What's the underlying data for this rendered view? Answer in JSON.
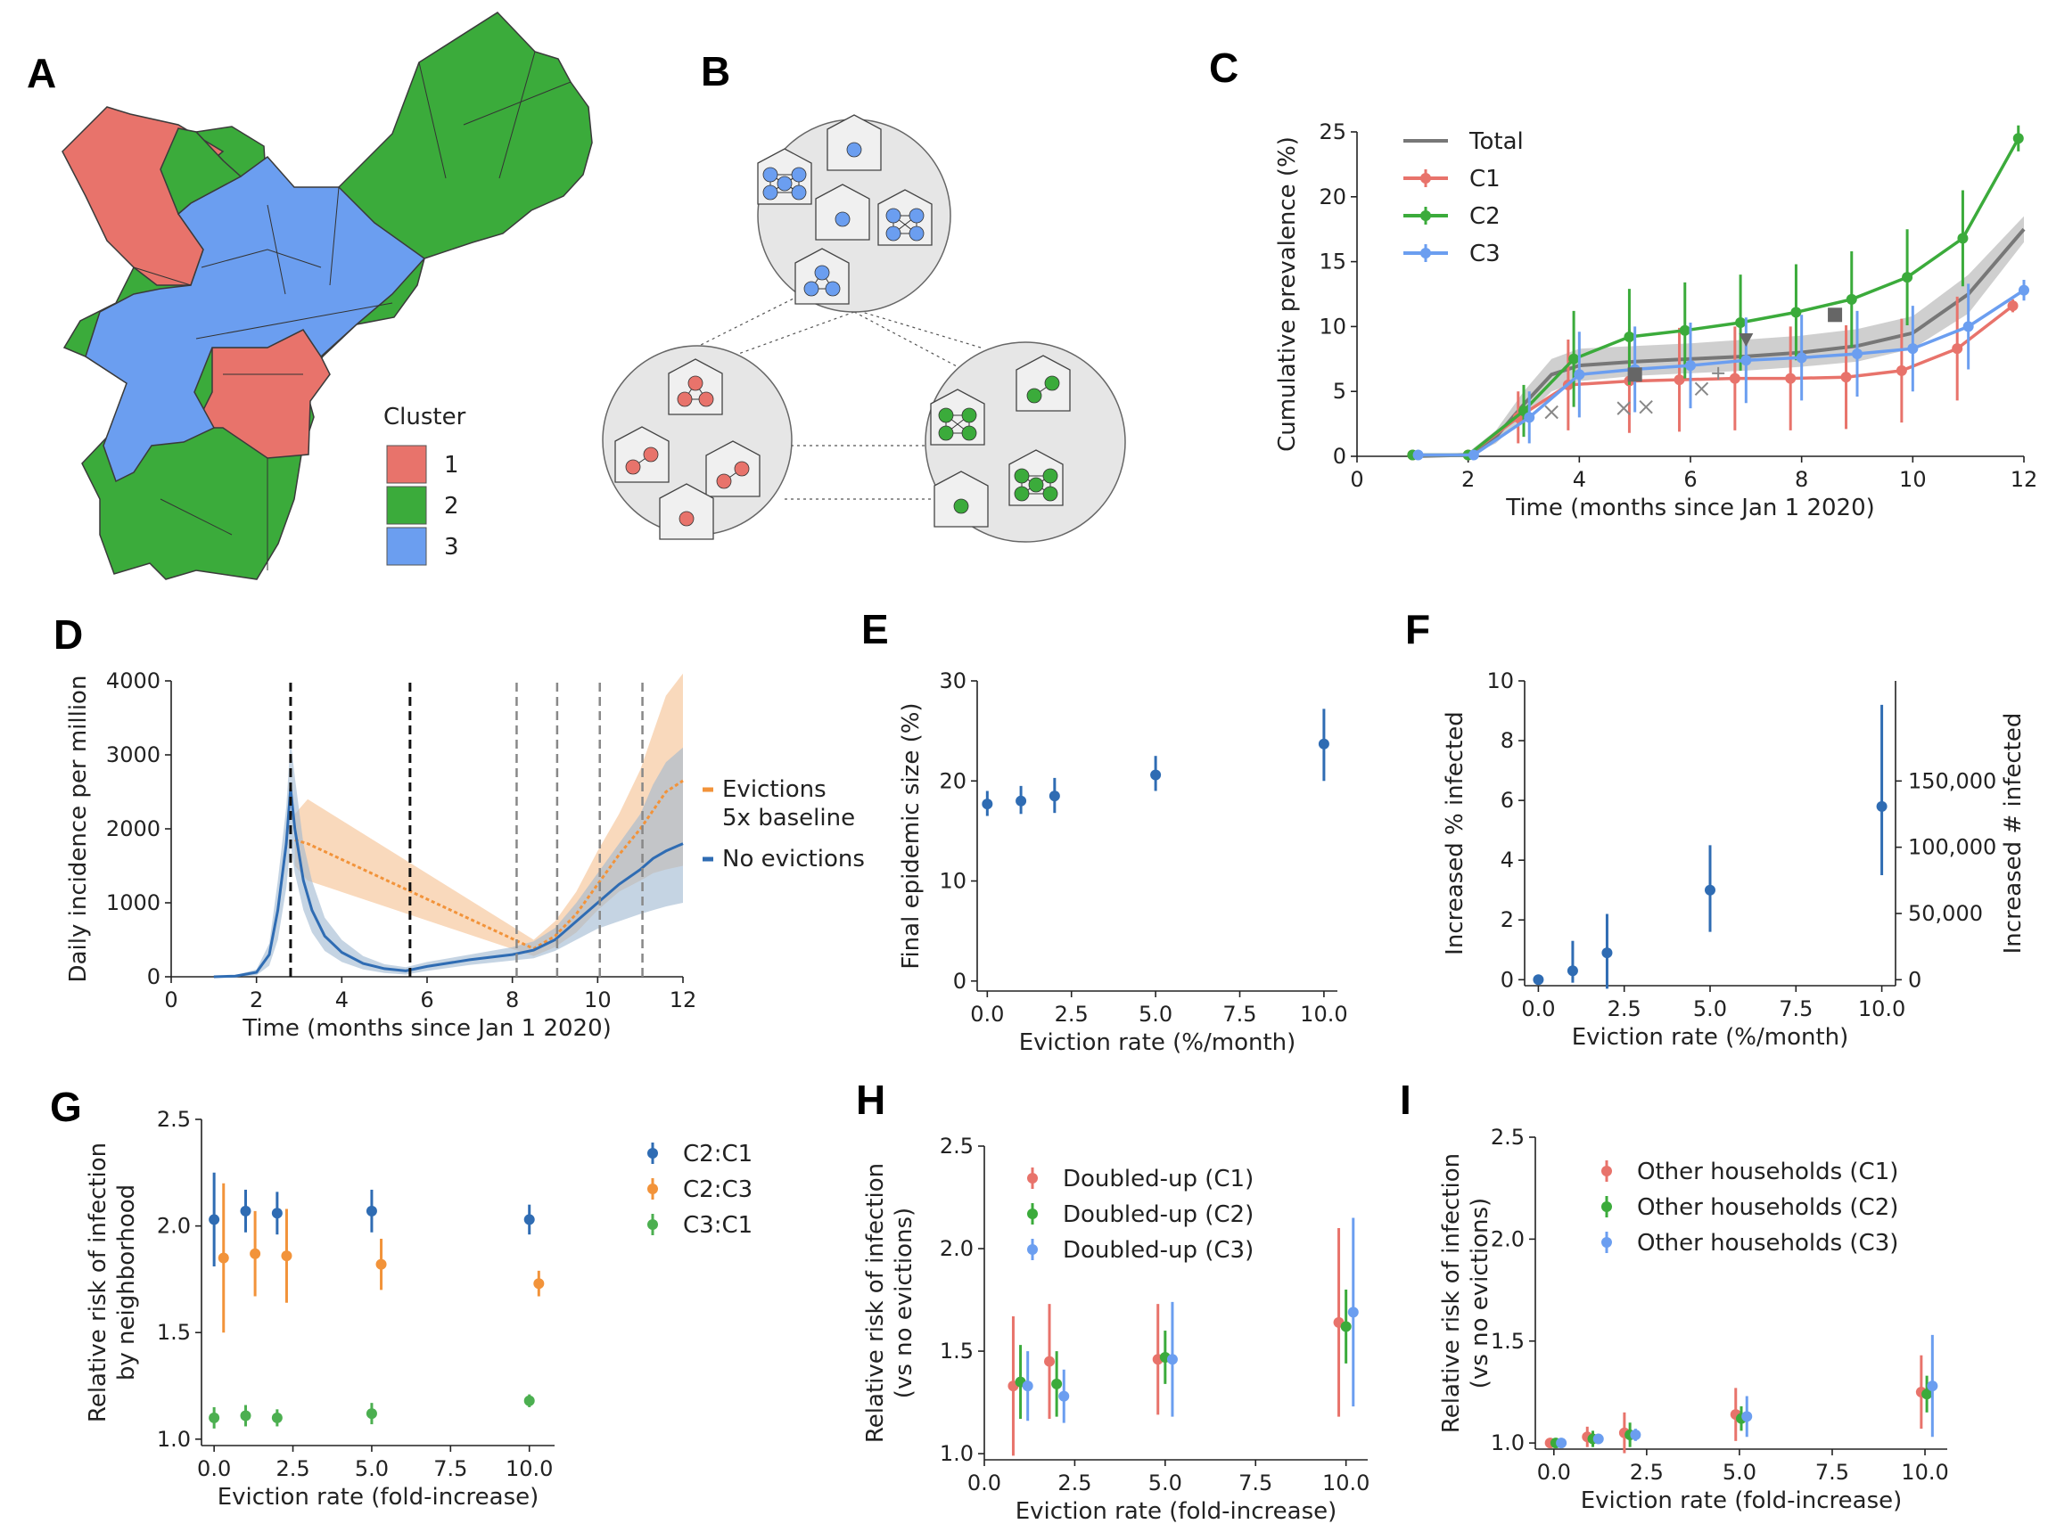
{
  "panel_labels": {
    "a": "A",
    "b": "B",
    "c": "C",
    "d": "D",
    "e": "E",
    "f": "F",
    "g": "G",
    "h": "H",
    "i": "I"
  },
  "colors": {
    "c1": "#e8736b",
    "c2": "#3bab3b",
    "c3": "#6b9ef0",
    "total": "#777777",
    "blue": "#2f6cb3",
    "orange": "#f2933a",
    "green": "#4caf50"
  },
  "map": {
    "legend_title": "Cluster",
    "legend_items": [
      "1",
      "2",
      "3"
    ]
  },
  "network": {
    "icon": "household-network-icon"
  },
  "chart_data": [
    {
      "id": "C",
      "type": "line",
      "xlabel": "Time (months since Jan 1 2020)",
      "ylabel": "Cumulative prevalence (%)",
      "xlim": [
        0,
        12
      ],
      "ylim": [
        0,
        25
      ],
      "xticks": [
        "0",
        "2",
        "4",
        "6",
        "8",
        "10",
        "12"
      ],
      "yticks": [
        "0",
        "5",
        "10",
        "15",
        "20",
        "25"
      ],
      "legend": [
        "Total",
        "C1",
        "C2",
        "C3"
      ],
      "total": {
        "x": [
          1,
          2,
          2.5,
          3,
          3.5,
          4,
          5,
          6,
          7,
          8,
          9,
          10,
          11,
          12
        ],
        "y": [
          0,
          0.1,
          1.5,
          4,
          6.3,
          7,
          7.3,
          7.5,
          7.7,
          8,
          8.5,
          9.5,
          12.5,
          17.5
        ],
        "lo": [
          0,
          0,
          1,
          3,
          5,
          5.8,
          6.2,
          6.4,
          6.6,
          6.9,
          7.3,
          8.3,
          11,
          16.5
        ],
        "hi": [
          0,
          0.3,
          2,
          5,
          7.5,
          8.3,
          8.5,
          8.7,
          9,
          9.3,
          9.8,
          10.8,
          14,
          18.5
        ]
      },
      "series": [
        {
          "name": "C1",
          "x": [
            1,
            2,
            2.9,
            3.8,
            4.9,
            5.8,
            6.8,
            7.8,
            8.8,
            9.8,
            10.8,
            11.8
          ],
          "y": [
            0.1,
            0.1,
            3,
            5.5,
            5.8,
            5.9,
            6,
            6,
            6.1,
            6.6,
            8.3,
            11.6
          ],
          "err": [
            0.2,
            0.2,
            2,
            3.5,
            4,
            4,
            4,
            4,
            4,
            4,
            4,
            0.5
          ]
        },
        {
          "name": "C2",
          "x": [
            1,
            2,
            3,
            3.9,
            4.9,
            5.9,
            6.9,
            7.9,
            8.9,
            9.9,
            10.9,
            11.9
          ],
          "y": [
            0.1,
            0.1,
            3.5,
            7.5,
            9.2,
            9.7,
            10.3,
            11.1,
            12.1,
            13.8,
            16.8,
            24.5
          ],
          "err": [
            0.2,
            0.2,
            2,
            3.7,
            3.7,
            3.7,
            3.7,
            3.7,
            3.7,
            3.7,
            3.7,
            1
          ]
        },
        {
          "name": "C3",
          "x": [
            1.1,
            2.1,
            3.1,
            4,
            5,
            6,
            7,
            8,
            9,
            10,
            11,
            12
          ],
          "y": [
            0.1,
            0.1,
            3,
            6.3,
            6.7,
            7,
            7.4,
            7.6,
            7.9,
            8.3,
            10,
            12.8
          ],
          "err": [
            0.2,
            0.2,
            2,
            3.3,
            3.3,
            3.3,
            3.3,
            3.3,
            3.3,
            3.3,
            3.3,
            0.8
          ]
        }
      ],
      "observed": [
        {
          "marker": "x",
          "x": [
            3.5,
            4.8,
            5.2
          ],
          "y": [
            3.4,
            3.7,
            3.8
          ]
        },
        {
          "marker": "x",
          "x": [
            6.2
          ],
          "y": [
            5.2
          ]
        },
        {
          "marker": "square",
          "x": [
            5,
            8.6
          ],
          "y": [
            6.3,
            10.9
          ]
        },
        {
          "marker": "triangle",
          "x": [
            7
          ],
          "y": [
            9
          ]
        },
        {
          "marker": "plus",
          "x": [
            6.5
          ],
          "y": [
            6.4
          ]
        }
      ]
    },
    {
      "id": "D",
      "type": "line",
      "xlabel": "Time (months since Jan 1 2020)",
      "ylabel": "Daily incidence per million",
      "xlim": [
        0,
        12
      ],
      "ylim": [
        0,
        4000
      ],
      "xticks": [
        "0",
        "2",
        "4",
        "6",
        "8",
        "10",
        "12"
      ],
      "yticks": [
        "0",
        "1000",
        "2000",
        "3000",
        "4000"
      ],
      "legend": [
        "Evictions\n5x baseline",
        "No evictions"
      ],
      "vlines_black": [
        2.8,
        5.6
      ],
      "vlines_grey": [
        8.1,
        9.05,
        10.05,
        11.05
      ],
      "series": [
        {
          "name": "No evictions",
          "x": [
            1,
            1.5,
            2,
            2.3,
            2.5,
            2.7,
            2.8,
            2.9,
            3.1,
            3.3,
            3.6,
            4,
            4.5,
            5,
            5.5,
            6,
            7,
            8,
            8.5,
            9,
            9.5,
            10,
            10.5,
            11,
            11.3,
            11.6,
            12
          ],
          "y": [
            0,
            10,
            60,
            300,
            900,
            1800,
            2550,
            2000,
            1300,
            900,
            550,
            330,
            180,
            110,
            80,
            140,
            230,
            300,
            360,
            500,
            750,
            1000,
            1250,
            1450,
            1600,
            1700,
            1800
          ],
          "lo": [
            0,
            0,
            20,
            150,
            500,
            1200,
            1800,
            1400,
            900,
            600,
            350,
            200,
            100,
            50,
            30,
            80,
            160,
            220,
            250,
            350,
            500,
            650,
            750,
            850,
            900,
            950,
            1000
          ],
          "hi": [
            0,
            20,
            100,
            450,
            1300,
            2300,
            3200,
            2700,
            1800,
            1300,
            800,
            500,
            280,
            170,
            130,
            200,
            300,
            400,
            480,
            660,
            1000,
            1400,
            1800,
            2200,
            2600,
            2900,
            3100
          ]
        },
        {
          "name": "Evictions 5x baseline",
          "x": [
            2.9,
            3.2,
            8.5,
            9,
            9.5,
            10,
            10.5,
            11,
            11.3,
            11.6,
            12
          ],
          "y": [
            1850,
            1800,
            380,
            550,
            850,
            1250,
            1650,
            2000,
            2250,
            2500,
            2650
          ],
          "lo": [
            1500,
            1300,
            280,
            400,
            600,
            900,
            1150,
            1300,
            1400,
            1450,
            1500
          ],
          "hi": [
            2200,
            2400,
            500,
            750,
            1150,
            1700,
            2200,
            2800,
            3300,
            3800,
            4100
          ]
        }
      ]
    },
    {
      "id": "E",
      "type": "scatter",
      "xlabel": "Eviction rate (%/month)",
      "ylabel": "Final epidemic size (%)",
      "xlim": [
        -0.3,
        10.4
      ],
      "ylim": [
        -1,
        30
      ],
      "xticks": [
        "0.0",
        "2.5",
        "5.0",
        "7.5",
        "10.0"
      ],
      "yticks": [
        "0",
        "10",
        "20",
        "30"
      ],
      "x": [
        0,
        1,
        2,
        5,
        10
      ],
      "y": [
        17.7,
        18,
        18.5,
        20.6,
        23.7
      ],
      "lo": [
        16.5,
        16.7,
        16.8,
        19,
        20
      ],
      "hi": [
        19,
        19.5,
        20.3,
        22.5,
        27.2
      ]
    },
    {
      "id": "F",
      "type": "scatter",
      "xlabel": "Eviction rate (%/month)",
      "ylabel": "Increased % infected",
      "ylabel_right": "Increased # infected",
      "xlim": [
        -0.4,
        10.4
      ],
      "ylim": [
        -0.2,
        10
      ],
      "xticks": [
        "0.0",
        "2.5",
        "5.0",
        "7.5",
        "10.0"
      ],
      "yticks": [
        "0",
        "2",
        "4",
        "6",
        "8",
        "10"
      ],
      "yticks_right": [
        "0",
        "50,000",
        "100,000",
        "150,000"
      ],
      "x": [
        0,
        1,
        2,
        5,
        10
      ],
      "y": [
        0,
        0.3,
        0.9,
        3,
        5.8
      ],
      "lo": [
        0,
        -0.1,
        -0.3,
        1.6,
        3.5
      ],
      "hi": [
        0,
        1.3,
        2.2,
        4.5,
        9.2
      ]
    },
    {
      "id": "G",
      "type": "scatter",
      "xlabel": "Eviction rate (fold-increase)",
      "ylabel": "Relative risk of infection\nby neighborhood",
      "xlim": [
        -0.4,
        10.8
      ],
      "ylim": [
        0.97,
        2.5
      ],
      "xticks": [
        "0.0",
        "2.5",
        "5.0",
        "7.5",
        "10.0"
      ],
      "yticks": [
        "1.0",
        "1.5",
        "2.0",
        "2.5"
      ],
      "series": [
        {
          "name": "C2:C1",
          "x": [
            0,
            1,
            2,
            5,
            10
          ],
          "y": [
            2.03,
            2.07,
            2.06,
            2.07,
            2.03
          ],
          "err": [
            0.22,
            0.1,
            0.1,
            0.1,
            0.07
          ]
        },
        {
          "name": "C2:C3",
          "x": [
            0.3,
            1.3,
            2.3,
            5.3,
            10.3
          ],
          "y": [
            1.85,
            1.87,
            1.86,
            1.82,
            1.73
          ],
          "err": [
            0.35,
            0.2,
            0.22,
            0.12,
            0.06
          ]
        },
        {
          "name": "C3:C1",
          "x": [
            0,
            1,
            2,
            5,
            10
          ],
          "y": [
            1.1,
            1.11,
            1.1,
            1.12,
            1.18
          ],
          "err": [
            0.05,
            0.05,
            0.04,
            0.05,
            0.03
          ]
        }
      ]
    },
    {
      "id": "H",
      "type": "scatter",
      "xlabel": "Eviction rate (fold-increase)",
      "ylabel": "Relative risk of infection\n(vs no evictions)",
      "xlim": [
        0,
        10.6
      ],
      "ylim": [
        0.97,
        2.5
      ],
      "xticks": [
        "0.0",
        "2.5",
        "5.0",
        "7.5",
        "10.0"
      ],
      "yticks": [
        "1.0",
        "1.5",
        "2.0",
        "2.5"
      ],
      "series": [
        {
          "name": "Doubled-up (C1)",
          "x": [
            0.8,
            1.8,
            4.8,
            9.8
          ],
          "y": [
            1.33,
            1.45,
            1.46,
            1.64
          ],
          "err": [
            0.34,
            0.28,
            0.27,
            0.46
          ]
        },
        {
          "name": "Doubled-up (C2)",
          "x": [
            1,
            2,
            5,
            10
          ],
          "y": [
            1.35,
            1.34,
            1.47,
            1.62
          ],
          "err": [
            0.18,
            0.16,
            0.13,
            0.18
          ]
        },
        {
          "name": "Doubled-up (C3)",
          "x": [
            1.2,
            2.2,
            5.2,
            10.2
          ],
          "y": [
            1.33,
            1.28,
            1.46,
            1.69
          ],
          "err": [
            0.17,
            0.13,
            0.28,
            0.46
          ]
        }
      ]
    },
    {
      "id": "I",
      "type": "scatter",
      "xlabel": "Eviction rate (fold-increase)",
      "ylabel": "Relative risk of infection\n(vs no evictions)",
      "xlim": [
        -0.5,
        10.6
      ],
      "ylim": [
        0.97,
        2.5
      ],
      "xticks": [
        "0.0",
        "2.5",
        "5.0",
        "7.5",
        "10.0"
      ],
      "yticks": [
        "1.0",
        "1.5",
        "2.0",
        "2.5"
      ],
      "series": [
        {
          "name": "Other households (C1)",
          "x": [
            -0.1,
            0.9,
            1.9,
            4.9,
            9.9
          ],
          "y": [
            1,
            1.03,
            1.05,
            1.14,
            1.25
          ],
          "err": [
            0.01,
            0.05,
            0.1,
            0.13,
            0.18
          ]
        },
        {
          "name": "Other households (C2)",
          "x": [
            0.05,
            1.05,
            2.05,
            5.05,
            10.05
          ],
          "y": [
            1,
            1.02,
            1.04,
            1.12,
            1.24
          ],
          "err": [
            0.01,
            0.04,
            0.06,
            0.06,
            0.09
          ]
        },
        {
          "name": "Other households (C3)",
          "x": [
            0.2,
            1.2,
            2.2,
            5.2,
            10.2
          ],
          "y": [
            1,
            1.02,
            1.04,
            1.13,
            1.28
          ],
          "err": [
            0.01,
            0.02,
            0.03,
            0.1,
            0.25
          ]
        }
      ]
    }
  ]
}
